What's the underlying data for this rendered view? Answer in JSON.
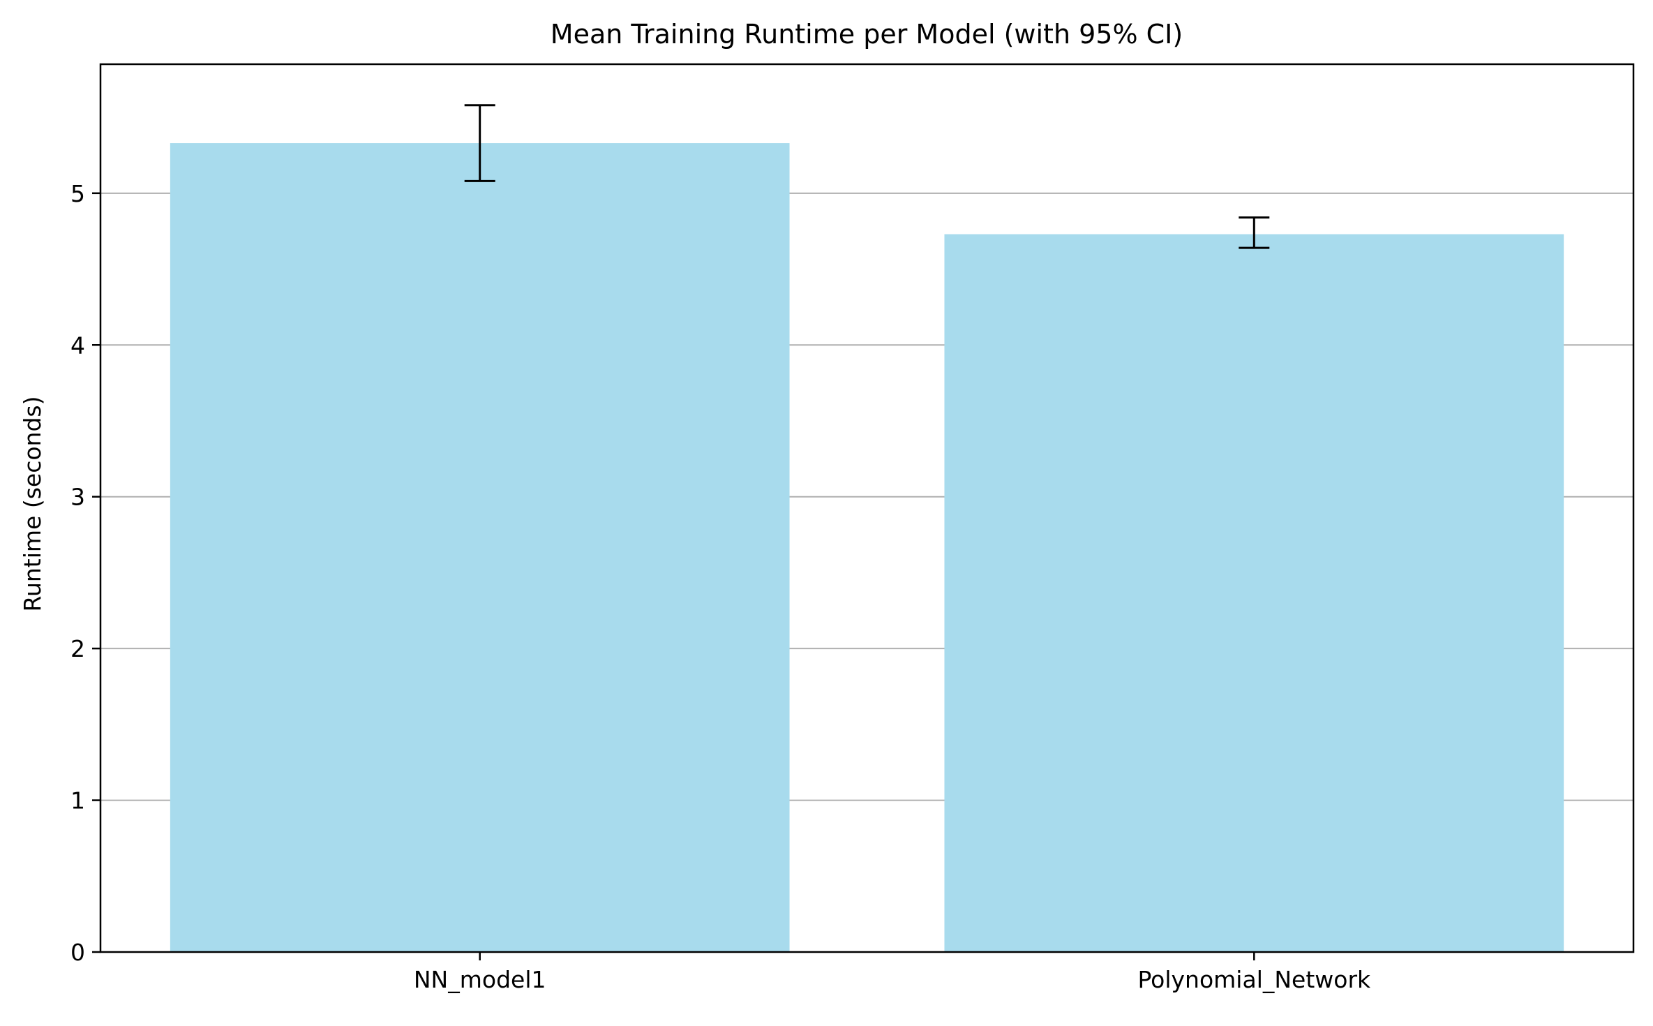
{
  "chart_data": {
    "type": "bar",
    "title": "Mean Training Runtime per Model (with 95% CI)",
    "xlabel": "",
    "ylabel": "Runtime (seconds)",
    "categories": [
      "NN_model1",
      "Polynomial_Network"
    ],
    "values": [
      5.33,
      4.73
    ],
    "ci_lower": [
      5.08,
      4.64
    ],
    "ci_upper": [
      5.58,
      4.84
    ],
    "ylim": [
      0,
      5.85
    ],
    "yticks": [
      0,
      1,
      2,
      3,
      4,
      5
    ],
    "ytick_labels": [
      "0",
      "1",
      "2",
      "3",
      "4",
      "5"
    ],
    "grid": "y-major",
    "bar_color": "#a8dbed",
    "errorbar_color": "#000000",
    "grid_color": "#b0b0b0"
  }
}
